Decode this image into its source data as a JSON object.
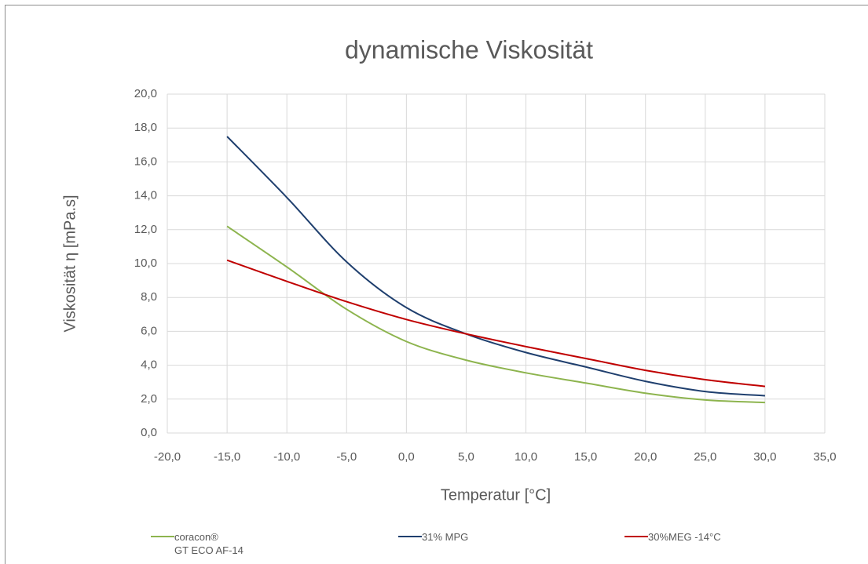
{
  "chart_data": {
    "type": "line",
    "title": "dynamische Viskosität",
    "xlabel": "Temperatur [°C]",
    "ylabel": "Viskosität  η [mPa.s]",
    "x": [
      -15,
      -10,
      -5,
      0,
      5,
      10,
      15,
      20,
      25,
      30
    ],
    "series": [
      {
        "name": "coracon®\nGT ECO AF-14",
        "color": "#8db44e",
        "values": [
          12.2,
          9.8,
          7.3,
          5.4,
          4.3,
          3.55,
          2.95,
          2.35,
          1.95,
          1.8
        ]
      },
      {
        "name": "31% MPG",
        "color": "#1f3f6e",
        "values": [
          17.5,
          13.9,
          10.1,
          7.4,
          5.85,
          4.75,
          3.9,
          3.05,
          2.45,
          2.2
        ]
      },
      {
        "name": "30%MEG -14°C",
        "color": "#c00000",
        "values": [
          10.2,
          8.95,
          7.75,
          6.7,
          5.85,
          5.1,
          4.4,
          3.7,
          3.15,
          2.75
        ]
      }
    ],
    "xlim": [
      -20,
      35
    ],
    "xticks": [
      {
        "value": -20,
        "label": "-20,0"
      },
      {
        "value": -15,
        "label": "-15,0"
      },
      {
        "value": -10,
        "label": "-10,0"
      },
      {
        "value": -5,
        "label": "-5,0"
      },
      {
        "value": 0,
        "label": "0,0"
      },
      {
        "value": 5,
        "label": "5,0"
      },
      {
        "value": 10,
        "label": "10,0"
      },
      {
        "value": 15,
        "label": "15,0"
      },
      {
        "value": 20,
        "label": "20,0"
      },
      {
        "value": 25,
        "label": "25,0"
      },
      {
        "value": 30,
        "label": "30,0"
      },
      {
        "value": 35,
        "label": "35,0"
      }
    ],
    "ylim": [
      0,
      20
    ],
    "yticks": [
      {
        "value": 0,
        "label": "0,0"
      },
      {
        "value": 2,
        "label": "2,0"
      },
      {
        "value": 4,
        "label": "4,0"
      },
      {
        "value": 6,
        "label": "6,0"
      },
      {
        "value": 8,
        "label": "8,0"
      },
      {
        "value": 10,
        "label": "10,0"
      },
      {
        "value": 12,
        "label": "12,0"
      },
      {
        "value": 14,
        "label": "14,0"
      },
      {
        "value": 16,
        "label": "16,0"
      },
      {
        "value": 18,
        "label": "18,0"
      },
      {
        "value": 20,
        "label": "20,0"
      }
    ],
    "grid": true,
    "legend": "bottom"
  }
}
